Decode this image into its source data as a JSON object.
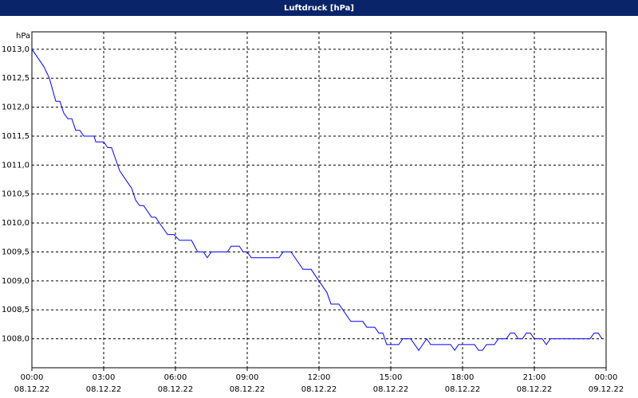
{
  "chart_data": {
    "type": "line",
    "title": "Luftdruck [hPa]",
    "y_label": "hPa",
    "x": [
      0,
      0.5,
      0.73,
      1.0,
      1.17,
      1.33,
      1.5,
      1.67,
      1.83,
      2.0,
      2.17,
      2.6,
      2.67,
      3.0,
      3.17,
      3.33,
      3.67,
      4.0,
      4.17,
      4.33,
      4.5,
      4.67,
      5.0,
      5.17,
      5.33,
      5.67,
      5.93,
      6.17,
      6.67,
      6.93,
      7.17,
      7.33,
      7.5,
      8.17,
      8.33,
      8.67,
      8.83,
      9.0,
      9.17,
      10.33,
      10.5,
      10.83,
      11.33,
      11.67,
      11.83,
      12.33,
      12.5,
      12.83,
      13.33,
      13.83,
      14.0,
      14.33,
      14.5,
      14.67,
      14.83,
      15.33,
      15.5,
      15.83,
      16.17,
      16.5,
      16.67,
      17.5,
      17.67,
      17.83,
      18.5,
      18.67,
      18.83,
      19.0,
      19.33,
      19.5,
      19.83,
      20.0,
      20.17,
      20.33,
      20.5,
      20.67,
      20.83,
      21.0,
      21.33,
      21.5,
      21.67,
      23.33,
      23.5,
      23.67,
      23.83
    ],
    "values": [
      1013.0,
      1012.7,
      1012.5,
      1012.1,
      1012.1,
      1011.9,
      1011.8,
      1011.8,
      1011.6,
      1011.6,
      1011.5,
      1011.5,
      1011.4,
      1011.4,
      1011.3,
      1011.3,
      1010.9,
      1010.7,
      1010.6,
      1010.4,
      1010.3,
      1010.3,
      1010.1,
      1010.1,
      1010.0,
      1009.8,
      1009.8,
      1009.7,
      1009.7,
      1009.5,
      1009.5,
      1009.4,
      1009.5,
      1009.5,
      1009.6,
      1009.6,
      1009.5,
      1009.5,
      1009.4,
      1009.4,
      1009.5,
      1009.5,
      1009.2,
      1009.2,
      1009.1,
      1008.8,
      1008.6,
      1008.6,
      1008.3,
      1008.3,
      1008.2,
      1008.2,
      1008.1,
      1008.1,
      1007.9,
      1007.9,
      1008.0,
      1008.0,
      1007.8,
      1008.0,
      1007.9,
      1007.9,
      1007.8,
      1007.9,
      1007.9,
      1007.8,
      1007.8,
      1007.9,
      1007.9,
      1008.0,
      1008.0,
      1008.1,
      1008.1,
      1008.0,
      1008.0,
      1008.1,
      1008.1,
      1008.0,
      1008.0,
      1007.9,
      1008.0,
      1008.0,
      1008.1,
      1008.1,
      1008.0
    ],
    "color": "#0000ff",
    "xlim": [
      0,
      24
    ],
    "ylim": [
      1007.5,
      1013.3
    ],
    "xticks": [
      {
        "value": 0,
        "label": "00:00",
        "date": "08.12.22"
      },
      {
        "value": 3,
        "label": "03:00",
        "date": "08.12.22"
      },
      {
        "value": 6,
        "label": "06:00",
        "date": "08.12.22"
      },
      {
        "value": 9,
        "label": "09:00",
        "date": "08.12.22"
      },
      {
        "value": 12,
        "label": "12:00",
        "date": "08.12.22"
      },
      {
        "value": 15,
        "label": "15:00",
        "date": "08.12.22"
      },
      {
        "value": 18,
        "label": "18:00",
        "date": "08.12.22"
      },
      {
        "value": 21,
        "label": "21:00",
        "date": "08.12.22"
      },
      {
        "value": 24,
        "label": "00:00",
        "date": "09.12.22"
      }
    ],
    "yticks": [
      {
        "value": 1008.0,
        "label": "1008,0"
      },
      {
        "value": 1008.5,
        "label": "1008,5"
      },
      {
        "value": 1009.0,
        "label": "1009,0"
      },
      {
        "value": 1009.5,
        "label": "1009,5"
      },
      {
        "value": 1010.0,
        "label": "1010,0"
      },
      {
        "value": 1010.5,
        "label": "1010,5"
      },
      {
        "value": 1011.0,
        "label": "1011,0"
      },
      {
        "value": 1011.5,
        "label": "1011,5"
      },
      {
        "value": 1012.0,
        "label": "1012,0"
      },
      {
        "value": 1012.5,
        "label": "1012,5"
      },
      {
        "value": 1013.0,
        "label": "1013,0"
      }
    ],
    "grid": true
  }
}
